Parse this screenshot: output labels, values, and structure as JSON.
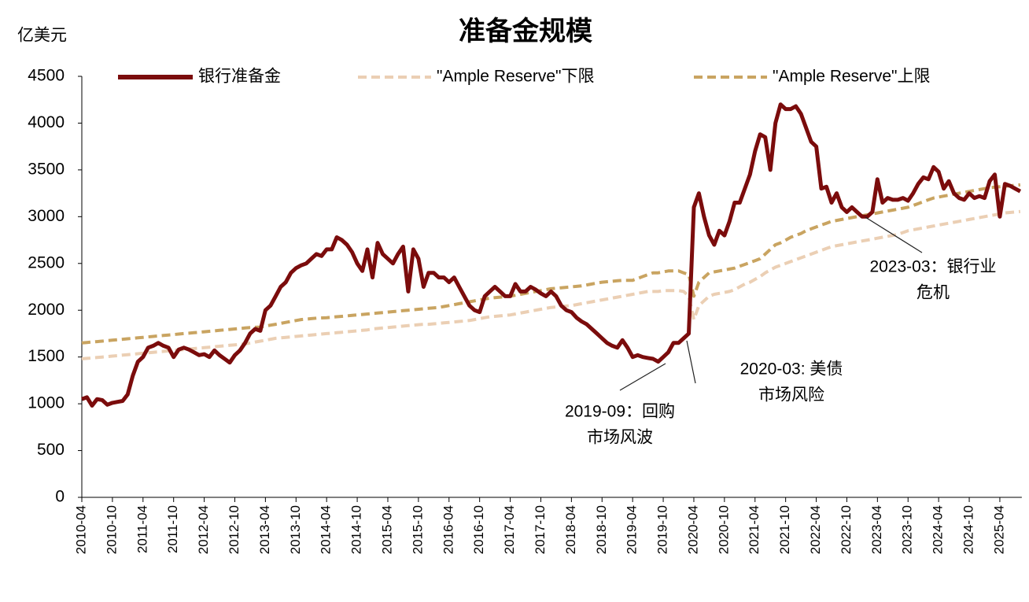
{
  "chart_data": {
    "type": "line",
    "title": "准备金规模",
    "y_label": "亿美元",
    "categories": [
      "2010-04",
      null,
      null,
      null,
      null,
      null,
      "2010-10",
      null,
      null,
      null,
      null,
      null,
      "2011-04",
      null,
      null,
      null,
      null,
      null,
      "2011-10",
      null,
      null,
      null,
      null,
      null,
      "2012-04",
      null,
      null,
      null,
      null,
      null,
      "2012-10",
      null,
      null,
      null,
      null,
      null,
      "2013-04",
      null,
      null,
      null,
      null,
      null,
      "2013-10",
      null,
      null,
      null,
      null,
      null,
      "2014-04",
      null,
      null,
      null,
      null,
      null,
      "2014-10",
      null,
      null,
      null,
      null,
      null,
      "2015-04",
      null,
      null,
      null,
      null,
      null,
      "2015-10",
      null,
      null,
      null,
      null,
      null,
      "2016-04",
      null,
      null,
      null,
      null,
      null,
      "2016-10",
      null,
      null,
      null,
      null,
      null,
      "2017-04",
      null,
      null,
      null,
      null,
      null,
      "2017-10",
      null,
      null,
      null,
      null,
      null,
      "2018-04",
      null,
      null,
      null,
      null,
      null,
      "2018-10",
      null,
      null,
      null,
      null,
      null,
      "2019-04",
      null,
      null,
      null,
      null,
      null,
      "2019-10",
      null,
      null,
      null,
      null,
      null,
      "2020-04",
      null,
      null,
      null,
      null,
      null,
      "2020-10",
      null,
      null,
      null,
      null,
      null,
      "2021-04",
      null,
      null,
      null,
      null,
      null,
      "2021-10",
      null,
      null,
      null,
      null,
      null,
      "2022-04",
      null,
      null,
      null,
      null,
      null,
      "2022-10",
      null,
      null,
      null,
      null,
      null,
      "2023-04",
      null,
      null,
      null,
      null,
      null,
      "2023-10",
      null,
      null,
      null,
      null,
      null,
      "2024-04",
      null,
      null,
      null,
      null,
      null,
      "2024-10",
      null,
      null,
      null,
      null,
      null,
      "2025-04",
      null,
      null,
      null,
      null
    ],
    "series": [
      {
        "name": "银行准备金",
        "color": "#7b0c0c",
        "style": "solid",
        "values": [
          1050,
          1070,
          980,
          1050,
          1040,
          990,
          1010,
          1020,
          1030,
          1100,
          1300,
          1450,
          1500,
          1600,
          1620,
          1650,
          1620,
          1600,
          1500,
          1580,
          1600,
          1580,
          1550,
          1520,
          1530,
          1500,
          1570,
          1520,
          1480,
          1440,
          1520,
          1570,
          1650,
          1750,
          1800,
          1780,
          2000,
          2050,
          2150,
          2250,
          2300,
          2400,
          2450,
          2480,
          2500,
          2550,
          2600,
          2580,
          2650,
          2650,
          2780,
          2750,
          2700,
          2620,
          2500,
          2420,
          2650,
          2350,
          2720,
          2600,
          2550,
          2500,
          2600,
          2680,
          2200,
          2650,
          2550,
          2250,
          2400,
          2400,
          2350,
          2350,
          2300,
          2350,
          2250,
          2150,
          2050,
          2000,
          1980,
          2150,
          2200,
          2250,
          2200,
          2150,
          2150,
          2280,
          2200,
          2200,
          2250,
          2220,
          2180,
          2150,
          2200,
          2150,
          2050,
          2000,
          1980,
          1920,
          1880,
          1850,
          1800,
          1750,
          1700,
          1650,
          1620,
          1600,
          1680,
          1600,
          1500,
          1520,
          1500,
          1490,
          1480,
          1450,
          1500,
          1550,
          1650,
          1650,
          1700,
          1750,
          3100,
          3250,
          3000,
          2800,
          2700,
          2850,
          2800,
          2950,
          3150,
          3150,
          3300,
          3450,
          3700,
          3880,
          3850,
          3500,
          4000,
          4200,
          4150,
          4150,
          4180,
          4100,
          3950,
          3800,
          3750,
          3300,
          3320,
          3150,
          3250,
          3100,
          3050,
          3100,
          3050,
          3000,
          3000,
          3050,
          3400,
          3150,
          3200,
          3180,
          3180,
          3200,
          3170,
          3250,
          3350,
          3420,
          3400,
          3530,
          3480,
          3300,
          3380,
          3250,
          3200,
          3180,
          3250,
          3200,
          3220,
          3200,
          3380,
          3450,
          3000,
          3350,
          3330,
          3300,
          3270
        ]
      },
      {
        "name": "\"Ample Reserve\"下限",
        "color": "#ebcfb4",
        "style": "dashed",
        "values": [
          1480,
          1485,
          1490,
          1495,
          1500,
          1505,
          1510,
          1515,
          1520,
          1525,
          1530,
          1535,
          1540,
          1545,
          1550,
          1555,
          1560,
          1565,
          1570,
          1575,
          1580,
          1585,
          1590,
          1595,
          1600,
          1605,
          1610,
          1615,
          1620,
          1625,
          1630,
          1635,
          1640,
          1650,
          1660,
          1670,
          1680,
          1690,
          1700,
          1705,
          1710,
          1715,
          1720,
          1725,
          1730,
          1735,
          1740,
          1745,
          1750,
          1755,
          1760,
          1765,
          1770,
          1775,
          1780,
          1785,
          1790,
          1800,
          1805,
          1810,
          1815,
          1820,
          1825,
          1830,
          1835,
          1840,
          1845,
          1850,
          1850,
          1855,
          1860,
          1865,
          1870,
          1875,
          1880,
          1885,
          1890,
          1900,
          1910,
          1920,
          1930,
          1935,
          1940,
          1945,
          1950,
          1960,
          1970,
          1980,
          1990,
          2000,
          2010,
          2020,
          2030,
          2035,
          2040,
          2045,
          2050,
          2060,
          2070,
          2080,
          2090,
          2100,
          2110,
          2120,
          2130,
          2140,
          2150,
          2160,
          2170,
          2180,
          2190,
          2200,
          2200,
          2200,
          2210,
          2210,
          2210,
          2210,
          2200,
          2150,
          1900,
          2050,
          2100,
          2150,
          2170,
          2180,
          2190,
          2200,
          2220,
          2250,
          2280,
          2300,
          2330,
          2360,
          2400,
          2430,
          2460,
          2480,
          2500,
          2520,
          2540,
          2560,
          2580,
          2600,
          2620,
          2640,
          2660,
          2680,
          2690,
          2700,
          2710,
          2720,
          2730,
          2740,
          2750,
          2760,
          2770,
          2780,
          2790,
          2800,
          2810,
          2830,
          2850,
          2860,
          2870,
          2880,
          2890,
          2900,
          2910,
          2920,
          2930,
          2940,
          2950,
          2960,
          2970,
          2980,
          2990,
          3000,
          3010,
          3020,
          3030,
          3040,
          3045,
          3050,
          3055
        ]
      },
      {
        "name": "\"Ample Reserve\"上限",
        "color": "#c9a461",
        "style": "dashed",
        "values": [
          1650,
          1655,
          1660,
          1665,
          1670,
          1675,
          1680,
          1685,
          1690,
          1695,
          1700,
          1705,
          1710,
          1715,
          1720,
          1725,
          1730,
          1735,
          1740,
          1745,
          1750,
          1755,
          1760,
          1765,
          1770,
          1775,
          1780,
          1785,
          1790,
          1795,
          1800,
          1805,
          1810,
          1815,
          1818,
          1820,
          1830,
          1840,
          1850,
          1860,
          1870,
          1880,
          1890,
          1900,
          1905,
          1910,
          1915,
          1918,
          1920,
          1925,
          1930,
          1935,
          1940,
          1945,
          1950,
          1955,
          1960,
          1965,
          1970,
          1975,
          1980,
          1985,
          1990,
          1995,
          2000,
          2005,
          2010,
          2015,
          2020,
          2025,
          2030,
          2040,
          2050,
          2060,
          2070,
          2080,
          2090,
          2100,
          2110,
          2120,
          2130,
          2135,
          2140,
          2145,
          2150,
          2160,
          2170,
          2180,
          2190,
          2200,
          2210,
          2220,
          2230,
          2235,
          2240,
          2245,
          2250,
          2255,
          2260,
          2270,
          2280,
          2290,
          2300,
          2305,
          2310,
          2315,
          2320,
          2320,
          2320,
          2340,
          2360,
          2380,
          2400,
          2400,
          2410,
          2420,
          2420,
          2420,
          2400,
          2380,
          2150,
          2300,
          2350,
          2400,
          2410,
          2420,
          2430,
          2440,
          2450,
          2470,
          2490,
          2510,
          2530,
          2550,
          2600,
          2650,
          2700,
          2720,
          2750,
          2780,
          2800,
          2820,
          2850,
          2870,
          2890,
          2910,
          2930,
          2950,
          2960,
          2970,
          2980,
          2990,
          3000,
          3010,
          3020,
          3030,
          3040,
          3050,
          3060,
          3070,
          3080,
          3090,
          3100,
          3120,
          3140,
          3160,
          3180,
          3200,
          3210,
          3220,
          3230,
          3240,
          3250,
          3260,
          3270,
          3280,
          3290,
          3300,
          3310,
          3315,
          3320,
          3325,
          3330,
          3335,
          3340
        ]
      }
    ],
    "ylim": [
      0,
      4500
    ],
    "yticks": [
      0,
      500,
      1000,
      1500,
      2000,
      2500,
      3000,
      3500,
      4000,
      4500
    ],
    "grid": false,
    "legend": "top",
    "annotations": [
      {
        "text": [
          "2019-09：回购",
          "市场风波"
        ]
      },
      {
        "text": [
          "2020-03: 美债",
          "市场风险"
        ]
      },
      {
        "text": [
          "2023-03：银行业",
          "危机"
        ]
      }
    ]
  }
}
